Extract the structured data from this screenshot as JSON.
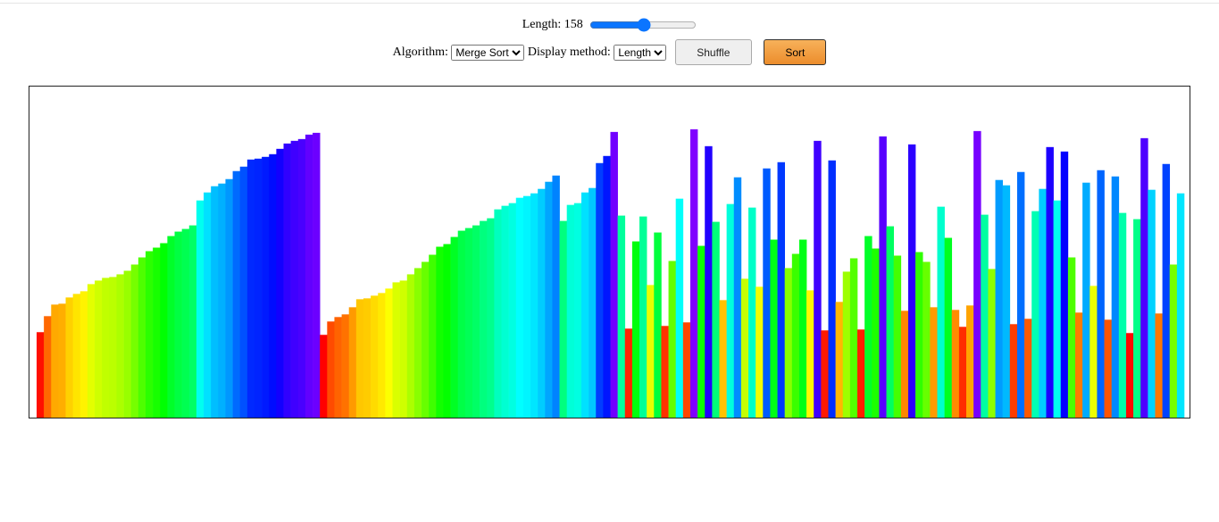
{
  "controls": {
    "length_label": "Length:",
    "length": 158,
    "algorithm_label": "Algorithm:",
    "algorithm": "Merge Sort",
    "display_label": "Display method:",
    "display": "Length",
    "shuffle": "Shuffle",
    "sort": "Sort"
  },
  "chart_data": {
    "type": "bar",
    "ylim": [
      0,
      372
    ],
    "values": [
      96,
      114,
      127,
      128,
      135,
      139,
      142,
      150,
      154,
      157,
      158,
      161,
      165,
      172,
      180,
      187,
      191,
      196,
      204,
      209,
      212,
      216,
      244,
      253,
      260,
      263,
      268,
      277,
      282,
      290,
      291,
      293,
      296,
      302,
      308,
      311,
      313,
      318,
      320,
      93,
      108,
      113,
      116,
      124,
      133,
      134,
      137,
      140,
      145,
      152,
      154,
      161,
      168,
      175,
      183,
      192,
      195,
      203,
      210,
      213,
      216,
      221,
      224,
      234,
      238,
      241,
      247,
      249,
      252,
      257,
      265,
      272,
      221,
      239,
      241,
      253,
      258,
      286,
      294,
      321,
      227,
      100,
      198,
      226,
      149,
      208,
      103,
      176,
      246,
      107,
      324,
      193,
      305,
      220,
      132,
      240,
      270,
      156,
      236,
      147,
      280,
      200,
      287,
      168,
      184,
      200,
      143,
      311,
      98,
      289,
      130,
      164,
      179,
      99,
      204,
      190,
      316,
      215,
      182,
      120,
      307,
      186,
      175,
      124,
      237,
      202,
      121,
      102,
      126,
      322,
      228,
      167,
      267,
      261,
      105,
      276,
      111,
      232,
      257,
      304,
      244,
      299,
      180,
      118,
      264,
      148,
      278,
      110,
      271,
      230,
      95,
      223,
      314,
      256,
      117,
      285,
      172,
      252
    ]
  }
}
